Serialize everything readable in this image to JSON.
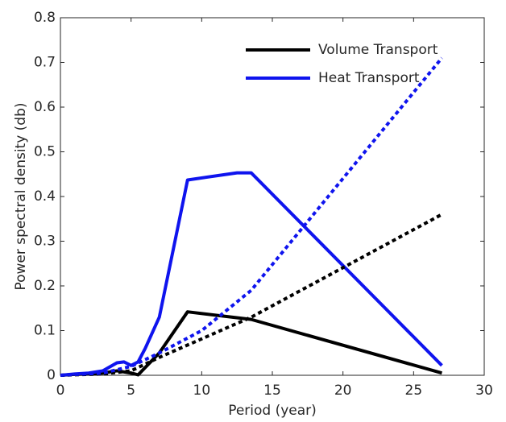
{
  "chart_data": {
    "type": "line",
    "x_label": "Period (year)",
    "y_label": "Power spectral density (db)",
    "xlim": [
      0,
      30
    ],
    "xticks": [
      0,
      5,
      10,
      15,
      20,
      25,
      30
    ],
    "ylim": [
      0,
      0.8
    ],
    "yticks": [
      0,
      0.1,
      0.2,
      0.3,
      0.4,
      0.5,
      0.6,
      0.7,
      0.8
    ],
    "grid": false,
    "legend": "top-right",
    "series": [
      {
        "name": "Volume Transport",
        "color": "#000000",
        "style": "solid",
        "x": [
          0,
          1,
          2,
          3,
          4,
          5,
          5.5,
          7,
          9,
          13.5,
          27
        ],
        "values": [
          0,
          0.002,
          0.003,
          0.005,
          0.01,
          0.005,
          0.001,
          0.05,
          0.142,
          0.125,
          0.005
        ]
      },
      {
        "name": "Heat Transport",
        "color": "#0f14ee",
        "style": "solid",
        "x": [
          0,
          1,
          2,
          3,
          4,
          4.5,
          5,
          5.5,
          6,
          7,
          9,
          12.5,
          13.5,
          27
        ],
        "values": [
          0,
          0.003,
          0.005,
          0.01,
          0.028,
          0.03,
          0.022,
          0.03,
          0.06,
          0.13,
          0.437,
          0.453,
          0.453,
          0.022
        ]
      },
      {
        "color": "#000000",
        "style": "dotted",
        "x": [
          0,
          3,
          5,
          7,
          13.5,
          27
        ],
        "values": [
          0,
          0.003,
          0.01,
          0.04,
          0.13,
          0.36
        ]
      },
      {
        "color": "#0f14ee",
        "style": "dotted",
        "x": [
          0,
          3,
          5,
          7,
          10,
          13.5,
          27
        ],
        "values": [
          0,
          0.005,
          0.02,
          0.05,
          0.1,
          0.19,
          0.71
        ]
      }
    ]
  }
}
